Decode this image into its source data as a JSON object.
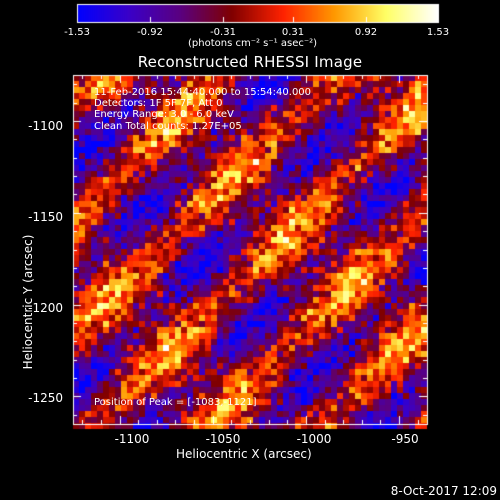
{
  "window": {
    "title": "Reconstructed RHESSI Image",
    "timestamp": "8-Oct-2017 12:09"
  },
  "colorbar": {
    "ticks": [
      "-1.53",
      "-0.92",
      "-0.31",
      "0.31",
      "0.92",
      "1.53"
    ],
    "units_label": "(photons cm⁻² s⁻¹ asec⁻²)",
    "colormap": [
      "#0000ff",
      "#3a00c8",
      "#5a0080",
      "#800000",
      "#ff2200",
      "#ff9900",
      "#ffff66",
      "#ffffff"
    ]
  },
  "annotations": {
    "time_range": "11-Feb-2016 15:44:40.000 to 15:54:40.000",
    "detectors": "Detectors: 1F 5F 7F, Att 0",
    "energy_range": "Energy Range: 3.0 - 6.0 keV",
    "method": "Clean     Total counts: 1.27E+05",
    "peak": "Position of Peak = [-1083,-1121]"
  },
  "axes": {
    "xlabel": "Heliocentric X (arcsec)",
    "ylabel": "Heliocentric Y (arcsec)",
    "xlim": [
      -1125,
      -935
    ],
    "ylim": [
      -1265,
      -1075
    ],
    "xticks": [
      "-1100",
      "-1050",
      "-1000",
      "-950"
    ],
    "yticks": [
      "-1100",
      "-1150",
      "-1200",
      "-1250"
    ]
  }
}
